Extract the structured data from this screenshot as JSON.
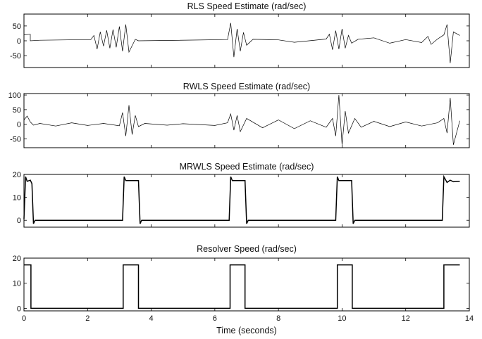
{
  "figure": {
    "xlabel": "Time (seconds)"
  },
  "chart_data": [
    {
      "type": "line",
      "title": "RLS Speed Estimate (rad/sec)",
      "xlim": [
        0,
        14
      ],
      "ylim": [
        -90,
        90
      ],
      "yticks": [
        -50,
        0,
        50
      ],
      "xticks": [
        0,
        2,
        4,
        6,
        8,
        10,
        12,
        14
      ],
      "show_xtick_labels": false,
      "stroke_width": 0.7,
      "series": [
        {
          "x": [
            0,
            0.2,
            0.2,
            0.5,
            2.1,
            2.2,
            2.3,
            2.4,
            2.5,
            2.6,
            2.7,
            2.8,
            2.9,
            3.0,
            3.1,
            3.2,
            3.3,
            3.5,
            3.6,
            6.4,
            6.5,
            6.6,
            6.7,
            6.8,
            6.9,
            7.0,
            7.2,
            8.0,
            8.5,
            9.5,
            9.6,
            9.7,
            9.8,
            9.9,
            10.0,
            10.1,
            10.2,
            10.3,
            10.5,
            11.0,
            11.5,
            12.0,
            12.5,
            12.7,
            12.8,
            13.0,
            13.2,
            13.3,
            13.4,
            13.5,
            13.7
          ],
          "y": [
            20,
            22,
            0,
            2,
            4,
            18,
            -28,
            30,
            -18,
            35,
            -25,
            38,
            -22,
            48,
            -35,
            55,
            -38,
            5,
            0,
            4,
            60,
            -55,
            40,
            -35,
            28,
            -15,
            5,
            3,
            -5,
            6,
            22,
            -30,
            34,
            -28,
            40,
            -25,
            18,
            -8,
            5,
            10,
            -8,
            4,
            -6,
            15,
            -12,
            6,
            20,
            55,
            -75,
            30,
            18
          ]
        }
      ]
    },
    {
      "type": "line",
      "title": "RWLS Speed Estimate (rad/sec)",
      "xlim": [
        0,
        14
      ],
      "ylim": [
        -80,
        105
      ],
      "yticks": [
        -50,
        0,
        50,
        100
      ],
      "xticks": [
        0,
        2,
        4,
        6,
        8,
        10,
        12,
        14
      ],
      "show_xtick_labels": false,
      "stroke_width": 0.7,
      "series": [
        {
          "x": [
            0,
            0.1,
            0.2,
            0.3,
            0.5,
            1.0,
            1.5,
            2.0,
            2.5,
            3.0,
            3.1,
            3.2,
            3.3,
            3.4,
            3.5,
            3.6,
            3.8,
            4.5,
            5.0,
            6.0,
            6.4,
            6.5,
            6.6,
            6.7,
            6.8,
            7.0,
            7.5,
            8.0,
            8.5,
            9.0,
            9.5,
            9.7,
            9.8,
            9.9,
            10.0,
            10.1,
            10.2,
            10.4,
            10.6,
            11.0,
            11.5,
            12.0,
            12.5,
            13.0,
            13.2,
            13.3,
            13.4,
            13.5,
            13.7
          ],
          "y": [
            15,
            28,
            8,
            -3,
            3,
            -6,
            5,
            -4,
            3,
            -5,
            40,
            -40,
            65,
            -35,
            30,
            -8,
            3,
            -3,
            2,
            -4,
            5,
            35,
            -20,
            30,
            -25,
            20,
            -12,
            15,
            -15,
            12,
            -10,
            20,
            -40,
            100,
            -70,
            45,
            -30,
            20,
            -10,
            10,
            -8,
            8,
            -6,
            5,
            20,
            -30,
            90,
            -70,
            12
          ]
        }
      ]
    },
    {
      "type": "line",
      "title": "MRWLS Speed Estimate (rad/sec)",
      "xlim": [
        0,
        14
      ],
      "ylim": [
        -3,
        20
      ],
      "yticks": [
        0,
        10,
        20
      ],
      "xticks": [
        0,
        2,
        4,
        6,
        8,
        10,
        12,
        14
      ],
      "show_xtick_labels": false,
      "stroke_width": 1.5,
      "series": [
        {
          "x": [
            0,
            0.05,
            0.1,
            0.2,
            0.25,
            0.3,
            0.35,
            3.1,
            3.15,
            3.2,
            3.6,
            3.65,
            3.7,
            6.45,
            6.5,
            6.55,
            6.95,
            7.0,
            7.05,
            9.8,
            9.85,
            9.9,
            10.3,
            10.35,
            10.4,
            13.15,
            13.2,
            13.3,
            13.4,
            13.5,
            13.7
          ],
          "y": [
            0.5,
            19,
            17,
            17.5,
            16,
            -1.5,
            0,
            0,
            19,
            17.3,
            17.3,
            -1.5,
            0,
            0,
            19,
            17.3,
            17.3,
            -1.5,
            0,
            0,
            19,
            17.3,
            17.3,
            -1.5,
            0,
            0,
            19,
            16.5,
            17.5,
            16.8,
            17
          ]
        }
      ]
    },
    {
      "type": "line",
      "title": "Resolver Speed (rad/sec)",
      "xlim": [
        0,
        14
      ],
      "ylim": [
        -1,
        20
      ],
      "yticks": [
        0,
        10,
        20
      ],
      "xticks": [
        0,
        2,
        4,
        6,
        8,
        10,
        12,
        14
      ],
      "xtick_labels": [
        "0",
        "2",
        "4",
        "6",
        "8",
        "10",
        "12",
        "14"
      ],
      "show_xtick_labels": true,
      "stroke_width": 1.5,
      "series": [
        {
          "x": [
            0,
            0.22,
            0.22,
            3.12,
            3.12,
            3.6,
            3.6,
            6.48,
            6.48,
            6.95,
            6.95,
            9.85,
            9.85,
            10.32,
            10.32,
            13.2,
            13.2,
            13.7
          ],
          "y": [
            17.3,
            17.3,
            0,
            0,
            17.3,
            17.3,
            0,
            0,
            17.3,
            17.3,
            0,
            0,
            17.3,
            17.3,
            0,
            0,
            17.3,
            17.3
          ]
        }
      ]
    }
  ]
}
